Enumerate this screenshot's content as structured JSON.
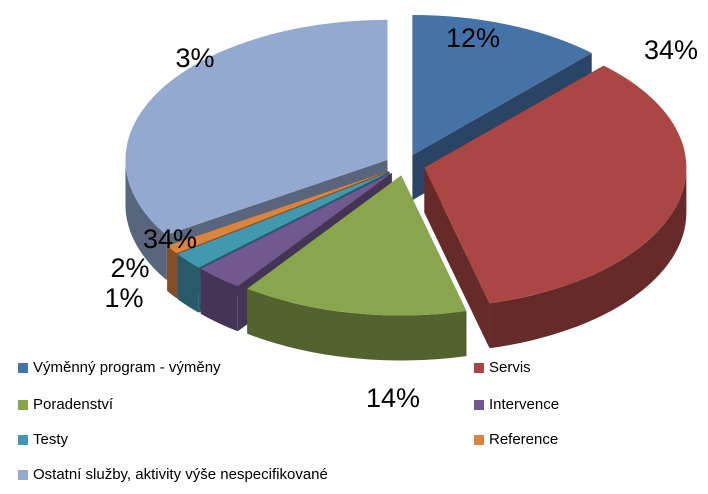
{
  "chart_data": {
    "type": "pie3d",
    "categories": [
      "Výměnný program - výměny",
      "Servis",
      "Poradenství",
      "Intervence",
      "Testy",
      "Reference",
      "Ostatní služby, aktivity výše nespecifikované"
    ],
    "values": [
      12,
      34,
      14,
      3,
      2,
      1,
      34
    ],
    "value_labels": [
      "12%",
      "34%",
      "14%",
      "3%",
      "2%",
      "1%",
      "34%"
    ],
    "colors": [
      "#4572a7",
      "#aa4643",
      "#89a54e",
      "#71588f",
      "#4198af",
      "#db843d",
      "#93a9cf"
    ],
    "legend": "bottom"
  }
}
